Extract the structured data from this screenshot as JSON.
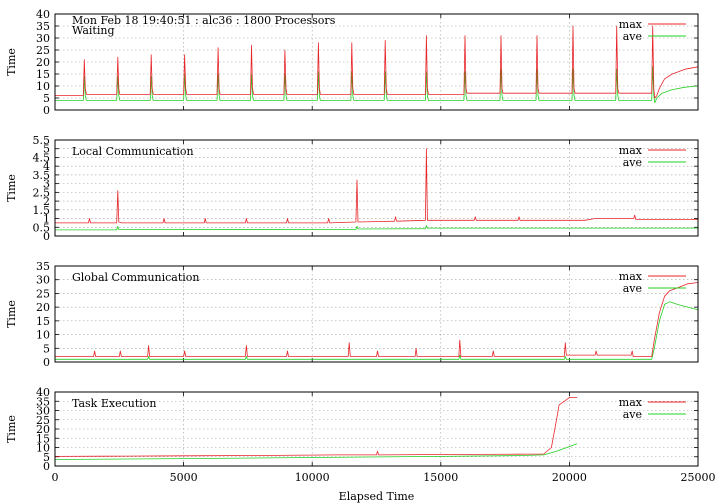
{
  "chart_data": {
    "type": "line",
    "title": "Mon Feb 18 19:40:51 : alc36 : 1800 Processors",
    "xlabel": "Elapsed Time",
    "xlim": [
      0,
      25000
    ],
    "xticks": [
      0,
      5000,
      10000,
      15000,
      20000,
      25000
    ],
    "grid": true,
    "legend_position": "top-right",
    "colors": {
      "max": "#e8262a",
      "ave": "#22d022"
    },
    "panels": [
      {
        "label": "Waiting",
        "ylabel": "Time",
        "ylim": [
          0,
          40
        ],
        "yticks": [
          0,
          5,
          10,
          15,
          20,
          25,
          30,
          35,
          40
        ],
        "series": [
          {
            "name": "max",
            "x": [
              0,
              1100,
              1140,
              1180,
              1220,
              1300,
              2400,
              2440,
              2480,
              2520,
              2600,
              3700,
              3740,
              3780,
              3820,
              3900,
              5000,
              5040,
              5080,
              5120,
              5200,
              6300,
              6340,
              6380,
              6420,
              6500,
              7600,
              7640,
              7680,
              7720,
              7800,
              8900,
              8940,
              8980,
              9020,
              9100,
              10200,
              10240,
              10280,
              10320,
              10400,
              11500,
              11540,
              11580,
              11620,
              11700,
              12800,
              12840,
              12880,
              12920,
              13000,
              14400,
              14440,
              14480,
              14520,
              14600,
              15900,
              15940,
              15980,
              16020,
              16100,
              17300,
              17340,
              17380,
              17420,
              17500,
              18700,
              18740,
              18780,
              18820,
              18900,
              20100,
              20140,
              20180,
              20220,
              20300,
              21800,
              21840,
              21880,
              21920,
              22000,
              23200,
              23240,
              23280,
              23320,
              23400,
              23500,
              23700,
              24000,
              24500,
              25000
            ],
            "y": [
              6,
              6,
              21,
              9,
              6.5,
              6.5,
              6.5,
              22,
              9,
              6.5,
              6.5,
              6.5,
              23,
              9,
              6.5,
              6.5,
              6.5,
              23,
              9,
              6.5,
              6.5,
              6.5,
              26,
              9,
              6.5,
              6.5,
              6.5,
              27,
              9,
              6.5,
              6.5,
              6.5,
              25,
              9,
              6.5,
              6.5,
              6.5,
              28,
              9,
              6.5,
              6.5,
              6.5,
              28,
              9,
              6.5,
              6.5,
              6.5,
              29,
              9,
              6.5,
              6.5,
              6.5,
              31,
              9,
              6.5,
              6.5,
              6.5,
              31,
              9,
              7,
              7,
              7,
              31,
              9,
              7,
              7,
              7,
              31,
              9,
              7,
              7,
              7,
              35,
              9,
              7,
              7,
              7,
              35,
              9,
              7,
              7,
              7,
              35,
              9,
              5,
              6,
              9,
              13,
              15,
              17,
              18
            ]
          },
          {
            "name": "ave",
            "x": [
              0,
              1100,
              1140,
              1180,
              1220,
              2400,
              2440,
              2480,
              2520,
              3700,
              3740,
              3780,
              3820,
              5000,
              5040,
              5080,
              5120,
              6300,
              6340,
              6380,
              6420,
              7600,
              7640,
              7680,
              7720,
              8900,
              8940,
              8980,
              9020,
              10200,
              10240,
              10280,
              10320,
              11500,
              11540,
              11580,
              11620,
              12800,
              12840,
              12880,
              12920,
              14400,
              14440,
              14480,
              14520,
              15900,
              15940,
              15980,
              16020,
              17300,
              17340,
              17380,
              17420,
              18700,
              18740,
              18780,
              18820,
              20100,
              20140,
              20180,
              20220,
              21800,
              21840,
              21880,
              21920,
              23200,
              23240,
              23280,
              23320,
              23400,
              23600,
              24000,
              24500,
              25000
            ],
            "y": [
              4,
              4,
              14,
              6,
              4,
              4,
              14,
              6,
              4,
              4,
              14,
              6,
              4,
              4,
              15,
              6,
              4,
              4,
              15,
              6,
              4,
              4,
              15,
              6,
              4,
              4,
              15,
              6,
              4,
              4,
              16,
              6,
              4,
              4,
              16,
              6,
              4,
              4,
              16,
              6,
              4,
              4,
              16,
              6,
              4,
              4,
              16,
              6,
              4,
              4,
              17,
              6,
              4,
              4,
              17,
              6,
              4,
              4,
              17,
              6,
              4,
              4,
              17,
              6,
              4,
              4,
              18,
              6,
              3,
              5,
              7,
              8.5,
              9.5,
              10
            ]
          }
        ]
      },
      {
        "label": "Local Communication",
        "ylabel": "Time",
        "ylim": [
          0,
          5.5
        ],
        "yticks": [
          0,
          0.5,
          1,
          1.5,
          2,
          2.5,
          3,
          3.5,
          4,
          4.5,
          5,
          5.5
        ],
        "series": [
          {
            "name": "max",
            "x": [
              0,
              1300,
              1340,
              1380,
              2400,
              2440,
              2480,
              2600,
              4200,
              4240,
              4280,
              5800,
              5840,
              5880,
              7400,
              7440,
              7480,
              9000,
              9040,
              9080,
              10600,
              10640,
              10680,
              11700,
              11740,
              11780,
              13200,
              13240,
              13280,
              14400,
              14440,
              14480,
              14600,
              16300,
              16340,
              16380,
              18000,
              18040,
              18080,
              20600,
              21000,
              22500,
              22540,
              22580,
              24000,
              25000
            ],
            "y": [
              0.75,
              0.75,
              1.0,
              0.75,
              0.75,
              2.6,
              0.8,
              0.75,
              0.75,
              1.0,
              0.75,
              0.75,
              1.0,
              0.75,
              0.75,
              1.0,
              0.75,
              0.75,
              1.0,
              0.75,
              0.75,
              1.0,
              0.75,
              0.8,
              3.2,
              0.8,
              0.85,
              1.1,
              0.85,
              0.9,
              5.0,
              0.9,
              0.9,
              0.9,
              1.1,
              0.9,
              0.9,
              1.1,
              0.9,
              0.9,
              1.0,
              1.0,
              1.2,
              0.95,
              0.95,
              0.95
            ]
          },
          {
            "name": "ave",
            "x": [
              0,
              2400,
              2440,
              2480,
              11700,
              11740,
              11780,
              14400,
              14440,
              14480,
              20000,
              25000
            ],
            "y": [
              0.35,
              0.35,
              0.55,
              0.37,
              0.38,
              0.55,
              0.4,
              0.42,
              0.6,
              0.45,
              0.45,
              0.45
            ]
          }
        ]
      },
      {
        "label": "Global Communication",
        "ylabel": "Time",
        "ylim": [
          0,
          35
        ],
        "yticks": [
          0,
          5,
          10,
          15,
          20,
          25,
          30,
          35
        ],
        "series": [
          {
            "name": "max",
            "x": [
              0,
              1500,
              1540,
              1580,
              2500,
              2540,
              2580,
              3600,
              3640,
              3680,
              5000,
              5040,
              5080,
              7400,
              7440,
              7480,
              9000,
              9040,
              9080,
              11400,
              11440,
              11480,
              12500,
              12540,
              12580,
              14000,
              14040,
              14080,
              15700,
              15740,
              15780,
              17000,
              17040,
              17080,
              19800,
              19840,
              19880,
              21000,
              21040,
              21080,
              22400,
              22440,
              22480,
              23200,
              23300,
              23500,
              23700,
              23900,
              24200,
              24600,
              25000
            ],
            "y": [
              2,
              2,
              4,
              2,
              2,
              4,
              2,
              2,
              6,
              2,
              2,
              4,
              2,
              2,
              6,
              2,
              2,
              4,
              2,
              2,
              7,
              2,
              2,
              4,
              2,
              2,
              5,
              2,
              2,
              8,
              2,
              2,
              4,
              2,
              2,
              7,
              2.5,
              2.5,
              4,
              2.5,
              2.5,
              4,
              2,
              2,
              8,
              18,
              24,
              26,
              27,
              28.5,
              29
            ]
          },
          {
            "name": "ave",
            "x": [
              0,
              3600,
              3640,
              3680,
              7400,
              7440,
              7480,
              15700,
              15740,
              15780,
              19800,
              19840,
              19880,
              23200,
              23300,
              23500,
              23700,
              23900,
              24200,
              24600,
              25000
            ],
            "y": [
              1,
              1,
              2,
              1,
              1,
              2,
              1,
              1,
              2.5,
              1,
              1,
              2,
              1,
              1,
              5,
              15,
              21,
              22,
              21,
              20,
              19
            ]
          }
        ]
      },
      {
        "label": "Task Execution",
        "ylabel": "Time",
        "ylim": [
          0,
          40
        ],
        "yticks": [
          0,
          5,
          10,
          15,
          20,
          25,
          30,
          35,
          40
        ],
        "series": [
          {
            "name": "max",
            "x": [
              0,
              2000,
              5000,
              8000,
              11000,
              12500,
              12540,
              12580,
              15000,
              18000,
              19000,
              19300,
              19500,
              19600,
              19800,
              20000,
              20300
            ],
            "y": [
              5.2,
              5.3,
              5.5,
              5.7,
              6,
              6,
              8,
              6,
              6.2,
              6.4,
              6.5,
              10,
              25,
              33,
              35,
              37,
              37
            ]
          },
          {
            "name": "ave",
            "x": [
              0,
              5000,
              10000,
              15000,
              18000,
              19000,
              19500,
              20000,
              20300
            ],
            "y": [
              3.5,
              4,
              4.6,
              5.2,
              5.6,
              6,
              8,
              10.5,
              12
            ]
          }
        ]
      }
    ]
  }
}
